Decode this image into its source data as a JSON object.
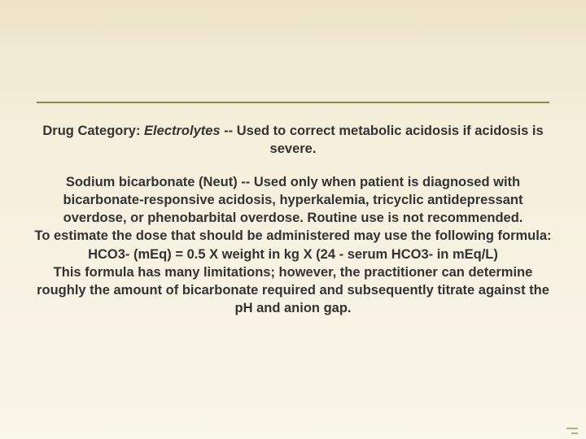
{
  "slide": {
    "divider_color": "#8a8a4a",
    "background_gradient": [
      "#ede4c8",
      "#f5efdb",
      "#f9f6ea"
    ],
    "text_color": "#333333",
    "font_family": "Verdana",
    "font_size_pt": 12,
    "font_weight": "bold",
    "alignment": "center",
    "paragraphs": {
      "p1_prefix": "Drug Category: ",
      "p1_italic": "Electrolytes",
      "p1_suffix": " -- Used to correct metabolic acidosis if acidosis is severe.",
      "p2_line1": "Sodium bicarbonate (Neut) -- Used only when patient is diagnosed with bicarbonate-responsive acidosis, hyperkalemia, tricyclic antidepressant overdose, or phenobarbital overdose. Routine use is not recommended.",
      "p2_line2": "To estimate the dose that should be administered may use the following formula: HCO3- (mEq) = 0.5 X weight in kg X (24 - serum HCO3- in mEq/L)",
      "p2_line3": "This formula has many limitations; however, the practitioner can determine roughly the amount of bicarbonate required and subsequently titrate against the pH and anion gap."
    }
  }
}
